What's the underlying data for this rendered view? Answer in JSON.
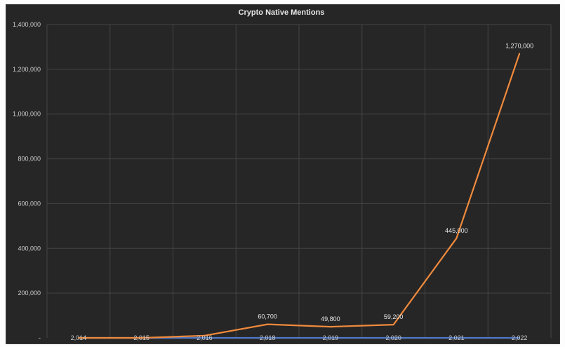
{
  "chart_data": {
    "type": "line",
    "title": "Crypto Native Mentions",
    "xlabel": "",
    "ylabel": "",
    "categories": [
      "2,014",
      "2,015",
      "2,016",
      "2,018",
      "2,019",
      "2,020",
      "2,021",
      "2,022"
    ],
    "y_ticks": [
      "-",
      "200,000",
      "400,000",
      "600,000",
      "800,000",
      "1,000,000",
      "1,200,000",
      "1,400,000"
    ],
    "ylim": [
      0,
      1400000
    ],
    "grid": true,
    "series": [
      {
        "color": "#f08a3c",
        "values": [
          0,
          0,
          10000,
          60700,
          49800,
          59200,
          445000,
          1270000
        ],
        "data_labels": [
          "",
          "",
          "",
          "60,700",
          "49,800",
          "59,200",
          "445,000",
          "1,270,000"
        ]
      },
      {
        "color": "#4f7ac7",
        "values": [
          0,
          0,
          0,
          0,
          0,
          0,
          0,
          0
        ]
      }
    ]
  }
}
